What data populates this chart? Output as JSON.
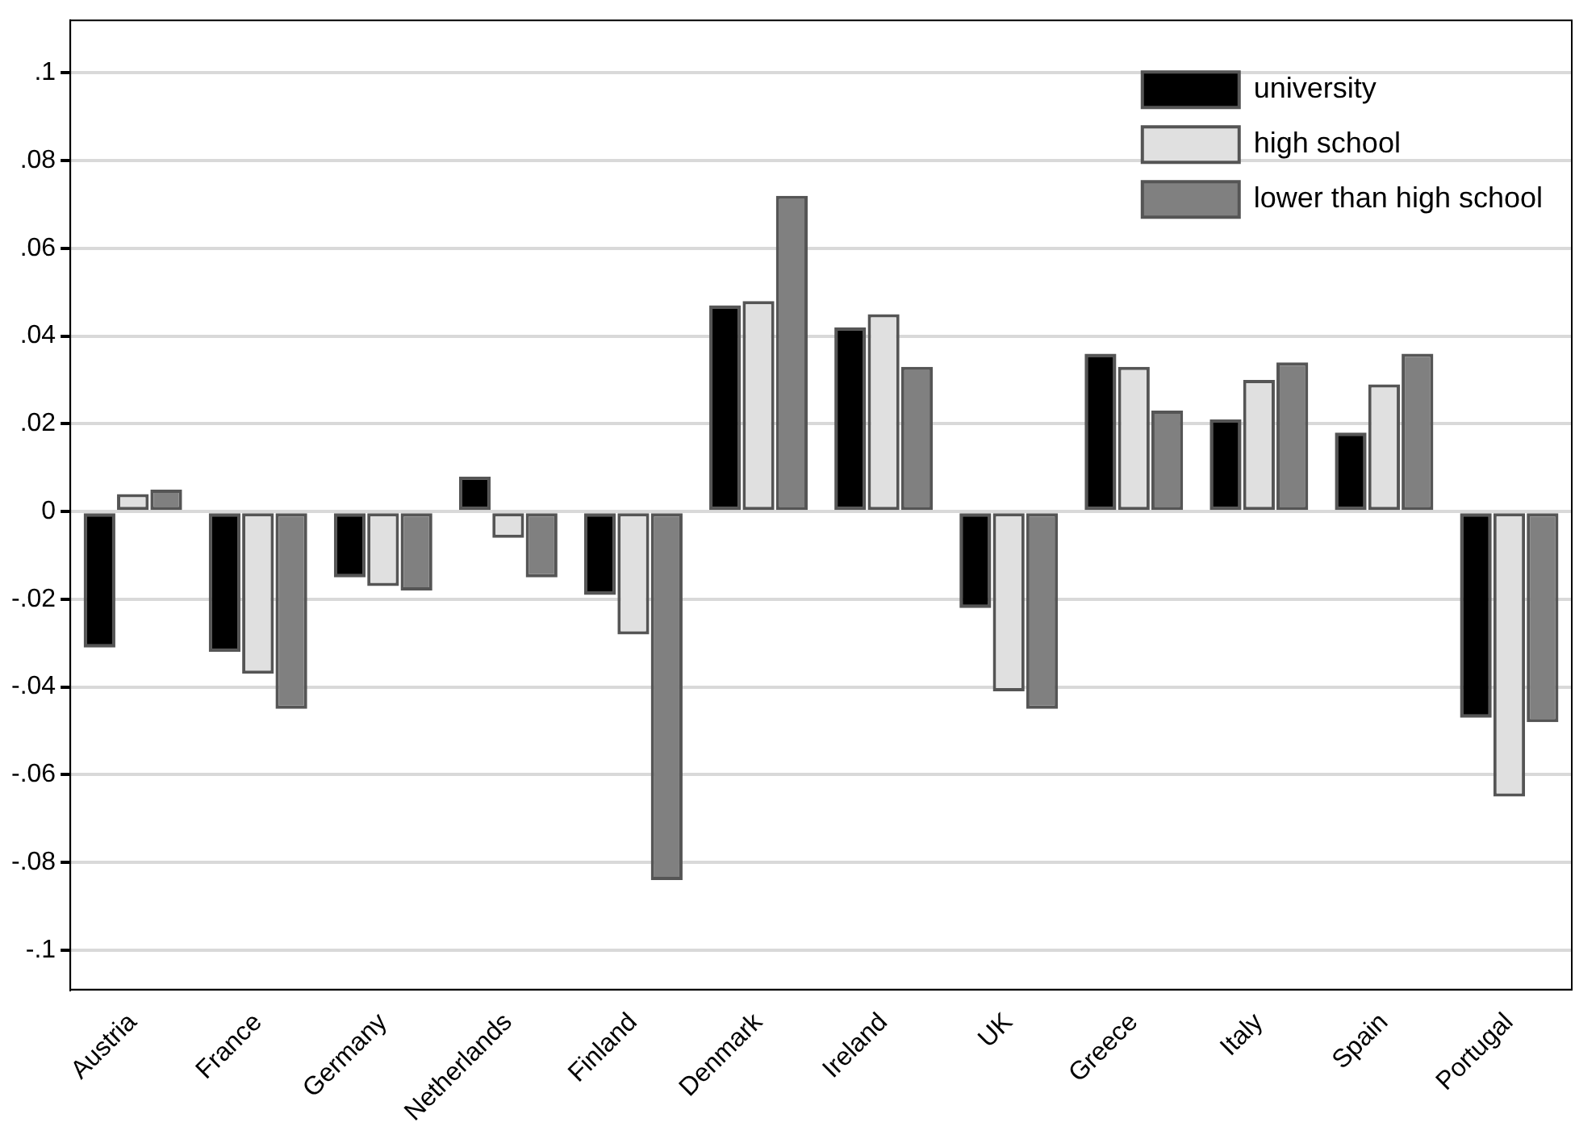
{
  "chart_data": {
    "type": "bar",
    "categories": [
      "Austria",
      "France",
      "Germany",
      "Netherlands",
      "Finland",
      "Denmark",
      "Ireland",
      "UK",
      "Greece",
      "Italy",
      "Spain",
      "Portugal"
    ],
    "series": [
      {
        "name": "university",
        "color": "#000000",
        "values": [
          -0.031,
          -0.032,
          -0.015,
          0.008,
          -0.019,
          0.047,
          0.042,
          -0.022,
          0.036,
          0.021,
          0.018,
          -0.047
        ]
      },
      {
        "name": "high school",
        "color": "#e0e0e0",
        "values": [
          0.004,
          -0.037,
          -0.017,
          -0.006,
          -0.028,
          0.048,
          0.045,
          -0.041,
          0.033,
          0.03,
          0.029,
          -0.065
        ]
      },
      {
        "name": "lower than high school",
        "color": "#808080",
        "values": [
          0.005,
          -0.045,
          -0.018,
          -0.015,
          -0.084,
          0.072,
          0.033,
          -0.045,
          0.023,
          0.034,
          0.036,
          -0.048
        ]
      }
    ],
    "ylim": [
      -0.109,
      0.112
    ],
    "yticks": [
      {
        "value": -0.1,
        "label": "-.1"
      },
      {
        "value": -0.08,
        "label": "-.08"
      },
      {
        "value": -0.06,
        "label": "-.06"
      },
      {
        "value": -0.04,
        "label": "-.04"
      },
      {
        "value": -0.02,
        "label": "-.02"
      },
      0,
      {
        "value": 0.02,
        "label": ".02"
      },
      {
        "value": 0.04,
        "label": ".04"
      },
      {
        "value": 0.06,
        "label": ".06"
      },
      {
        "value": 0.08,
        "label": ".08"
      },
      {
        "value": 0.1,
        "label": ".1"
      }
    ],
    "grid": "y",
    "legend": "top right"
  }
}
